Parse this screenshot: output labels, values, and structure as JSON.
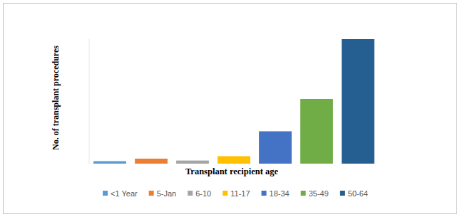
{
  "chart_data": {
    "type": "bar",
    "x_label": "Transplant recipient age",
    "y_label": "No. of transplant procedures",
    "categories": [
      "<1 Year",
      "5-Jan",
      "6-10",
      "11-17",
      "18-34",
      "35-49",
      "50-64"
    ],
    "values": [
      2,
      4,
      2.5,
      6,
      26,
      52,
      100
    ],
    "colors": [
      "#5b9bd5",
      "#ed7d31",
      "#a5a5a5",
      "#ffc000",
      "#4472c4",
      "#70ad47",
      "#255e91"
    ],
    "ylim": [
      0,
      100
    ],
    "tick_labels": false,
    "grid": false,
    "legend": "bottom"
  }
}
